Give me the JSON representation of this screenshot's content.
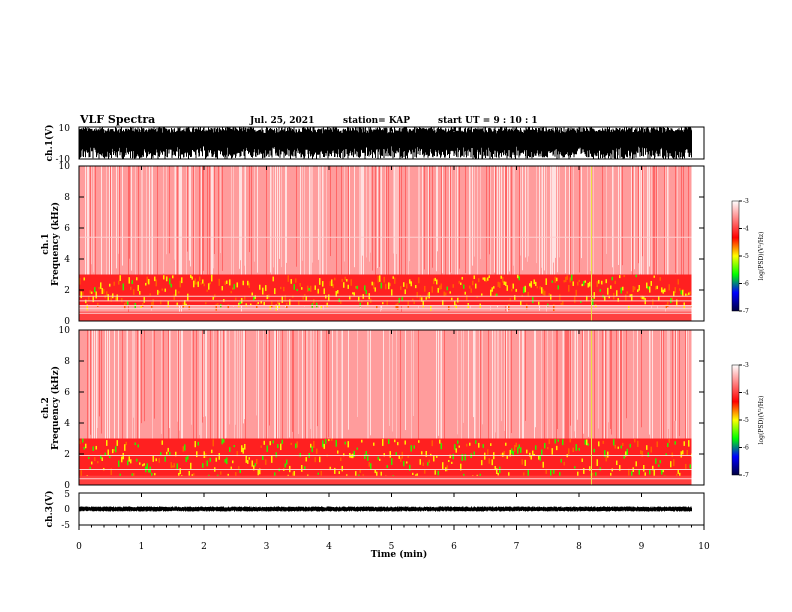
{
  "header": {
    "title": "VLF Spectra",
    "date": "Jul. 25, 2021",
    "station": "station= KAP",
    "start_ut": "start  UT =   9 : 10 : 1"
  },
  "colors": {
    "spectrogram": [
      "#ffffff",
      "#ff8080",
      "#ff0000",
      "#ffff00",
      "#00ff00",
      "#0000ff",
      "#000040"
    ],
    "waveform": "#000000"
  },
  "chart_data": [
    {
      "type": "line",
      "name": "ch1-waveform",
      "ylabel": "ch.1(V)",
      "ylim": [
        -10,
        10
      ],
      "yticks": [
        "10",
        "-10"
      ],
      "xlim": [
        0,
        10
      ],
      "description_envelope_V": [
        -10,
        10
      ],
      "typical_range_V": [
        -6,
        10
      ]
    },
    {
      "type": "heatmap",
      "name": "ch1-spectrogram",
      "ylabel": "ch.1\nFrequency  (kHz)",
      "ylabel_line1": "ch.1",
      "ylabel_line2": "Frequency  (kHz)",
      "xlim": [
        0,
        10
      ],
      "ylim": [
        0,
        10
      ],
      "yticks": [
        "0",
        "2",
        "4",
        "6",
        "8",
        "10"
      ],
      "colorbar": {
        "label": "log(PSD)(V²/Hz)",
        "range": [
          -7,
          -3
        ],
        "ticks": [
          "-3",
          "-4",
          "-5",
          "-6",
          "-7"
        ]
      },
      "features": {
        "intense_band_kHz": [
          1.0,
          3.0
        ],
        "narrowband_lines_kHz": [
          0.5,
          0.8,
          1.0,
          1.3,
          1.6,
          5.4
        ],
        "background_level_logPSD": -3.3,
        "transient_line_min": 8.2
      }
    },
    {
      "type": "heatmap",
      "name": "ch2-spectrogram",
      "ylabel_line1": "ch.2",
      "ylabel_line2": "Frequency  (kHz)",
      "xlim": [
        0,
        10
      ],
      "ylim": [
        0,
        10
      ],
      "yticks": [
        "0",
        "2",
        "4",
        "6",
        "8",
        "10"
      ],
      "colorbar": {
        "label": "log(PSD)(V²/Hz)",
        "range": [
          -7,
          -3
        ],
        "ticks": [
          "-3",
          "-4",
          "-5",
          "-6",
          "-7"
        ]
      },
      "features": {
        "intense_band_kHz": [
          0.5,
          3.0
        ],
        "narrowband_lines_kHz": [
          0.4,
          1.0,
          1.9
        ],
        "background_level_logPSD": -3.3,
        "transient_line_min": 8.2
      }
    },
    {
      "type": "line",
      "name": "ch3-waveform",
      "ylabel": "ch.3(V)",
      "ylim": [
        -5,
        5
      ],
      "yticks": [
        "5",
        "0",
        "-5"
      ],
      "xlim": [
        0,
        10
      ],
      "typical_range_V": [
        -0.8,
        0.8
      ]
    }
  ],
  "xaxis": {
    "label": "Time  (min)",
    "ticks": [
      "0",
      "1",
      "2",
      "3",
      "4",
      "5",
      "6",
      "7",
      "8",
      "9",
      "10"
    ],
    "data_end_min": 9.8
  }
}
